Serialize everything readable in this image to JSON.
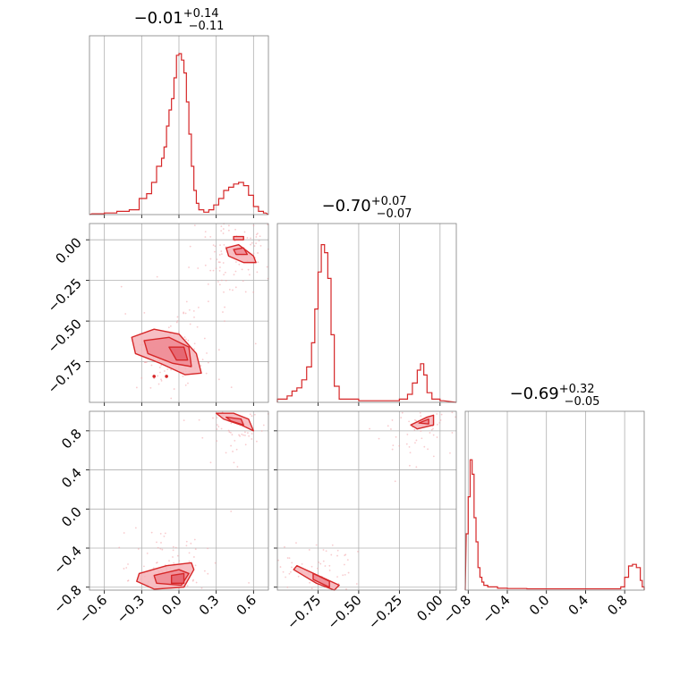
{
  "colors": {
    "series": "#d62728",
    "contour_fills": [
      "#f6b3b8",
      "#ee8a93",
      "#e4606c"
    ],
    "points": "#f2a0a6",
    "grid": "#b0b0b0"
  },
  "chart_data": {
    "type": "corner",
    "grid": true,
    "n_params": 3,
    "titles": [
      {
        "value": "−0.01",
        "plus": "+0.14",
        "minus": "−0.11"
      },
      {
        "value": "−0.70",
        "plus": "+0.07",
        "minus": "−0.07"
      },
      {
        "value": "−0.69",
        "plus": "+0.32",
        "minus": "−0.05"
      }
    ],
    "ranges": [
      [
        -0.72,
        0.72
      ],
      [
        -1.0,
        0.1
      ],
      [
        -0.83,
        1.0
      ]
    ],
    "ticks": [
      {
        "values": [
          -0.6,
          -0.3,
          0.0,
          0.3,
          0.6
        ],
        "labels": [
          "−0.6",
          "−0.3",
          "0.0",
          "0.3",
          "0.6"
        ]
      },
      {
        "values": [
          -0.75,
          -0.5,
          -0.25,
          0.0
        ],
        "labels": [
          "−0.75",
          "−0.50",
          "−0.25",
          "0.00"
        ]
      },
      {
        "values": [
          -0.8,
          -0.4,
          0.0,
          0.4,
          0.8
        ],
        "labels": [
          "−0.8",
          "−0.4",
          "0.0",
          "0.4",
          "0.8"
        ]
      }
    ],
    "histograms": [
      {
        "param": 0,
        "bins": [
          [
            -0.7,
            0.005
          ],
          [
            -0.6,
            0.01
          ],
          [
            -0.5,
            0.02
          ],
          [
            -0.4,
            0.03
          ],
          [
            -0.32,
            0.1
          ],
          [
            -0.26,
            0.13
          ],
          [
            -0.22,
            0.2
          ],
          [
            -0.18,
            0.3
          ],
          [
            -0.14,
            0.35
          ],
          [
            -0.12,
            0.42
          ],
          [
            -0.1,
            0.55
          ],
          [
            -0.08,
            0.65
          ],
          [
            -0.06,
            0.72
          ],
          [
            -0.04,
            0.85
          ],
          [
            -0.02,
            0.99
          ],
          [
            0.0,
            1.0
          ],
          [
            0.02,
            0.96
          ],
          [
            0.04,
            0.88
          ],
          [
            0.06,
            0.7
          ],
          [
            0.08,
            0.5
          ],
          [
            0.1,
            0.3
          ],
          [
            0.12,
            0.15
          ],
          [
            0.14,
            0.07
          ],
          [
            0.16,
            0.03
          ],
          [
            0.2,
            0.015
          ],
          [
            0.24,
            0.03
          ],
          [
            0.28,
            0.06
          ],
          [
            0.32,
            0.1
          ],
          [
            0.36,
            0.15
          ],
          [
            0.4,
            0.17
          ],
          [
            0.44,
            0.19
          ],
          [
            0.48,
            0.2
          ],
          [
            0.52,
            0.18
          ],
          [
            0.56,
            0.12
          ],
          [
            0.6,
            0.05
          ],
          [
            0.64,
            0.02
          ],
          [
            0.68,
            0.01
          ]
        ],
        "bin_width": 0.02
      },
      {
        "param": 1,
        "bins": [
          [
            -1.0,
            0.02
          ],
          [
            -0.97,
            0.02
          ],
          [
            -0.94,
            0.04
          ],
          [
            -0.91,
            0.07
          ],
          [
            -0.88,
            0.09
          ],
          [
            -0.85,
            0.14
          ],
          [
            -0.82,
            0.22
          ],
          [
            -0.79,
            0.37
          ],
          [
            -0.77,
            0.58
          ],
          [
            -0.75,
            0.81
          ],
          [
            -0.73,
            0.98
          ],
          [
            -0.71,
            0.93
          ],
          [
            -0.69,
            0.77
          ],
          [
            -0.67,
            0.42
          ],
          [
            -0.65,
            0.1
          ],
          [
            -0.62,
            0.02
          ],
          [
            -0.5,
            0.01
          ],
          [
            -0.4,
            0.01
          ],
          [
            -0.25,
            0.02
          ],
          [
            -0.2,
            0.05
          ],
          [
            -0.17,
            0.12
          ],
          [
            -0.14,
            0.2
          ],
          [
            -0.12,
            0.24
          ],
          [
            -0.1,
            0.17
          ],
          [
            -0.08,
            0.06
          ],
          [
            -0.05,
            0.02
          ],
          [
            0.0,
            0.01
          ]
        ],
        "bin_width": 0.02
      },
      {
        "param": 2,
        "bins": [
          [
            -0.82,
            0.35
          ],
          [
            -0.8,
            0.58
          ],
          [
            -0.78,
            0.81
          ],
          [
            -0.76,
            0.72
          ],
          [
            -0.74,
            0.45
          ],
          [
            -0.72,
            0.3
          ],
          [
            -0.7,
            0.14
          ],
          [
            -0.68,
            0.08
          ],
          [
            -0.66,
            0.05
          ],
          [
            -0.64,
            0.03
          ],
          [
            -0.6,
            0.02
          ],
          [
            -0.5,
            0.012
          ],
          [
            -0.4,
            0.01
          ],
          [
            -0.2,
            0.008
          ],
          [
            0.0,
            0.008
          ],
          [
            0.3,
            0.008
          ],
          [
            0.6,
            0.008
          ],
          [
            0.76,
            0.02
          ],
          [
            0.8,
            0.08
          ],
          [
            0.84,
            0.15
          ],
          [
            0.88,
            0.16
          ],
          [
            0.92,
            0.14
          ],
          [
            0.96,
            0.06
          ],
          [
            0.98,
            0.02
          ]
        ],
        "bin_width": 0.03
      }
    ],
    "scatter_panels": [
      {
        "x_param": 0,
        "y_param": 1,
        "contours": [
          {
            "level": 1,
            "points": [
              [
                -0.38,
                -0.6
              ],
              [
                -0.2,
                -0.55
              ],
              [
                0.0,
                -0.58
              ],
              [
                0.14,
                -0.7
              ],
              [
                0.18,
                -0.82
              ],
              [
                0.05,
                -0.83
              ],
              [
                -0.15,
                -0.76
              ],
              [
                -0.35,
                -0.7
              ]
            ]
          },
          {
            "level": 2,
            "points": [
              [
                -0.28,
                -0.62
              ],
              [
                -0.08,
                -0.6
              ],
              [
                0.08,
                -0.66
              ],
              [
                0.1,
                -0.78
              ],
              [
                -0.05,
                -0.76
              ],
              [
                -0.25,
                -0.7
              ]
            ]
          },
          {
            "level": 3,
            "points": [
              [
                -0.08,
                -0.66
              ],
              [
                0.04,
                -0.66
              ],
              [
                0.07,
                -0.74
              ],
              [
                -0.02,
                -0.74
              ]
            ]
          },
          {
            "level": 1,
            "points": [
              [
                0.38,
                -0.05
              ],
              [
                0.48,
                -0.03
              ],
              [
                0.6,
                -0.1
              ],
              [
                0.62,
                -0.14
              ],
              [
                0.52,
                -0.14
              ],
              [
                0.4,
                -0.1
              ]
            ]
          },
          {
            "level": 2,
            "points": [
              [
                0.44,
                -0.06
              ],
              [
                0.52,
                -0.05
              ],
              [
                0.55,
                -0.09
              ],
              [
                0.46,
                -0.09
              ]
            ]
          },
          {
            "level": 1,
            "points": [
              [
                0.44,
                0.02
              ],
              [
                0.52,
                0.02
              ],
              [
                0.52,
                0.0
              ],
              [
                0.44,
                0.0
              ]
            ]
          }
        ],
        "markers": [
          [
            -0.2,
            -0.84
          ],
          [
            -0.1,
            -0.84
          ]
        ]
      },
      {
        "x_param": 0,
        "y_param": 2,
        "contours": [
          {
            "level": 1,
            "points": [
              [
                -0.32,
                -0.66
              ],
              [
                -0.1,
                -0.58
              ],
              [
                0.1,
                -0.55
              ],
              [
                0.12,
                -0.62
              ],
              [
                0.04,
                -0.8
              ],
              [
                -0.2,
                -0.82
              ],
              [
                -0.34,
                -0.74
              ]
            ]
          },
          {
            "level": 2,
            "points": [
              [
                -0.2,
                -0.68
              ],
              [
                0.0,
                -0.62
              ],
              [
                0.08,
                -0.66
              ],
              [
                0.02,
                -0.78
              ],
              [
                -0.18,
                -0.76
              ]
            ]
          },
          {
            "level": 3,
            "points": [
              [
                -0.06,
                -0.68
              ],
              [
                0.04,
                -0.66
              ],
              [
                0.04,
                -0.76
              ],
              [
                -0.06,
                -0.76
              ]
            ]
          },
          {
            "level": 1,
            "points": [
              [
                0.3,
                0.98
              ],
              [
                0.44,
                0.98
              ],
              [
                0.56,
                0.92
              ],
              [
                0.6,
                0.8
              ],
              [
                0.5,
                0.86
              ],
              [
                0.36,
                0.92
              ]
            ]
          },
          {
            "level": 2,
            "points": [
              [
                0.38,
                0.94
              ],
              [
                0.5,
                0.92
              ],
              [
                0.52,
                0.86
              ],
              [
                0.42,
                0.9
              ]
            ]
          }
        ],
        "markers": []
      },
      {
        "x_param": 1,
        "y_param": 2,
        "contours": [
          {
            "level": 1,
            "points": [
              [
                -0.88,
                -0.58
              ],
              [
                -0.75,
                -0.68
              ],
              [
                -0.62,
                -0.78
              ],
              [
                -0.65,
                -0.83
              ],
              [
                -0.76,
                -0.76
              ],
              [
                -0.9,
                -0.62
              ]
            ]
          },
          {
            "level": 2,
            "points": [
              [
                -0.78,
                -0.66
              ],
              [
                -0.68,
                -0.74
              ],
              [
                -0.68,
                -0.8
              ],
              [
                -0.78,
                -0.72
              ]
            ]
          },
          {
            "level": 1,
            "points": [
              [
                -0.18,
                0.86
              ],
              [
                -0.08,
                0.94
              ],
              [
                -0.04,
                0.96
              ],
              [
                -0.04,
                0.86
              ],
              [
                -0.14,
                0.82
              ]
            ]
          },
          {
            "level": 2,
            "points": [
              [
                -0.13,
                0.88
              ],
              [
                -0.07,
                0.92
              ],
              [
                -0.07,
                0.87
              ]
            ]
          }
        ],
        "markers": []
      }
    ]
  }
}
